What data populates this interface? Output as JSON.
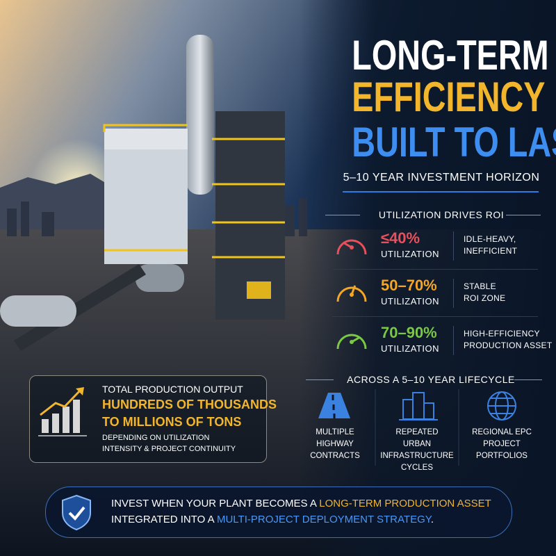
{
  "header": {
    "title_lines": [
      "LONG-TERM",
      "EFFICIENCY",
      "BUILT TO LAST"
    ],
    "subtitle": "5–10 YEAR INVESTMENT HORIZON"
  },
  "roi": {
    "heading": "UTILIZATION DRIVES ROI",
    "rows": [
      {
        "range": "≤40%",
        "label": "UTILIZATION",
        "desc": [
          "IDLE-HEAVY,",
          "INEFFICIENT"
        ]
      },
      {
        "range": "50–70%",
        "label": "UTILIZATION",
        "desc": [
          "STABLE",
          "ROI ZONE"
        ]
      },
      {
        "range": "70–90%",
        "label": "UTILIZATION",
        "desc": [
          "HIGH-EFFICIENCY",
          "PRODUCTION ASSET"
        ]
      }
    ]
  },
  "lifecycle": {
    "heading": "ACROSS A 5–10 YEAR LIFECYCLE",
    "items": [
      {
        "lines": [
          "MULTIPLE",
          "HIGHWAY",
          "CONTRACTS"
        ]
      },
      {
        "lines": [
          "REPEATED",
          "URBAN",
          "INFRASTRUCTURE",
          "CYCLES"
        ]
      },
      {
        "lines": [
          "REGIONAL EPC",
          "PROJECT",
          "PORTFOLIOS"
        ]
      }
    ]
  },
  "output": {
    "label": "TOTAL PRODUCTION OUTPUT",
    "highlight": [
      "HUNDREDS OF THOUSANDS",
      "TO MILLIONS OF TONS"
    ],
    "note": [
      "DEPENDING ON UTILIZATION",
      "INTENSITY & PROJECT CONTINUITY"
    ]
  },
  "banner": {
    "line1": [
      "INVEST WHEN YOUR PLANT BECOMES A ",
      "LONG-TERM PRODUCTION ASSET"
    ],
    "line2": [
      "INTEGRATED INTO A ",
      "MULTI-PROJECT DEPLOYMENT STRATEGY",
      "."
    ]
  }
}
